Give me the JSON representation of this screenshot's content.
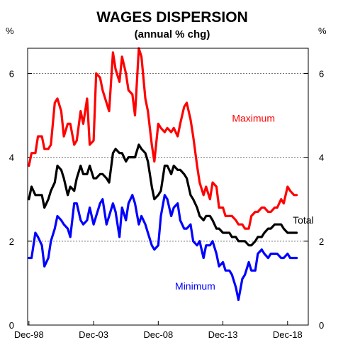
{
  "chart_data": {
    "type": "line",
    "title": "WAGES DISPERSION",
    "subtitle": "(annual % chg)",
    "ylabel_left": "%",
    "ylabel_right": "%",
    "ylim": [
      0,
      6.6
    ],
    "yticks": [
      0,
      2,
      4,
      6
    ],
    "xlim": [
      1998.8,
      2020.5
    ],
    "xticks": [
      {
        "value": 1998.9,
        "label": "Dec-98"
      },
      {
        "value": 2003.9,
        "label": "Dec-03"
      },
      {
        "value": 2008.9,
        "label": "Dec-08"
      },
      {
        "value": 2013.9,
        "label": "Dec-13"
      },
      {
        "value": 2018.9,
        "label": "Dec-18"
      }
    ],
    "grid": "horizontal",
    "series": [
      {
        "name": "Maximum",
        "color": "#ff0000",
        "x": [
          1998.9,
          1999.1,
          1999.4,
          1999.6,
          1999.9,
          2000.1,
          2000.4,
          2000.6,
          2000.9,
          2001.1,
          2001.4,
          2001.6,
          2001.9,
          2002.1,
          2002.4,
          2002.6,
          2002.9,
          2003.1,
          2003.4,
          2003.6,
          2003.9,
          2004.1,
          2004.4,
          2004.6,
          2004.9,
          2005.1,
          2005.4,
          2005.6,
          2005.9,
          2006.1,
          2006.4,
          2006.6,
          2006.9,
          2007.1,
          2007.4,
          2007.6,
          2007.9,
          2008.1,
          2008.4,
          2008.6,
          2008.9,
          2009.1,
          2009.4,
          2009.6,
          2009.9,
          2010.1,
          2010.4,
          2010.6,
          2010.9,
          2011.1,
          2011.4,
          2011.6,
          2011.9,
          2012.1,
          2012.4,
          2012.6,
          2012.9,
          2013.1,
          2013.4,
          2013.6,
          2013.9,
          2014.1,
          2014.4,
          2014.6,
          2014.9,
          2015.1,
          2015.4,
          2015.6,
          2015.9,
          2016.1,
          2016.4,
          2016.6,
          2016.9,
          2017.1,
          2017.4,
          2017.6,
          2017.9,
          2018.1,
          2018.4,
          2018.6,
          2018.9,
          2019.1,
          2019.4,
          2019.6
        ],
        "values": [
          3.8,
          4.1,
          4.1,
          4.5,
          4.5,
          4.2,
          4.2,
          4.3,
          5.3,
          5.4,
          5.1,
          4.5,
          4.8,
          4.8,
          4.3,
          4.4,
          5.1,
          4.8,
          5.4,
          4.3,
          4.4,
          6.0,
          5.9,
          5.6,
          5.3,
          5.1,
          6.5,
          6.1,
          5.8,
          6.4,
          6.0,
          5.6,
          5.5,
          5.0,
          6.6,
          6.4,
          5.4,
          5.1,
          4.3,
          3.9,
          4.8,
          4.7,
          4.6,
          4.7,
          4.6,
          4.7,
          4.5,
          4.8,
          5.2,
          5.3,
          4.9,
          4.5,
          3.8,
          3.4,
          3.1,
          3.3,
          3.0,
          3.4,
          3.3,
          2.8,
          2.8,
          2.6,
          2.6,
          2.6,
          2.5,
          2.4,
          2.4,
          2.3,
          2.3,
          2.6,
          2.7,
          2.7,
          2.8,
          2.8,
          2.7,
          2.7,
          2.8,
          2.8,
          3.0,
          2.9,
          3.3,
          3.2,
          3.1,
          3.1
        ]
      },
      {
        "name": "Total",
        "color": "#000000",
        "x": [
          1998.9,
          1999.1,
          1999.4,
          1999.6,
          1999.9,
          2000.1,
          2000.4,
          2000.6,
          2000.9,
          2001.1,
          2001.4,
          2001.6,
          2001.9,
          2002.1,
          2002.4,
          2002.6,
          2002.9,
          2003.1,
          2003.4,
          2003.6,
          2003.9,
          2004.1,
          2004.4,
          2004.6,
          2004.9,
          2005.1,
          2005.4,
          2005.6,
          2005.9,
          2006.1,
          2006.4,
          2006.6,
          2006.9,
          2007.1,
          2007.4,
          2007.6,
          2007.9,
          2008.1,
          2008.4,
          2008.6,
          2008.9,
          2009.1,
          2009.4,
          2009.6,
          2009.9,
          2010.1,
          2010.4,
          2010.6,
          2010.9,
          2011.1,
          2011.4,
          2011.6,
          2011.9,
          2012.1,
          2012.4,
          2012.6,
          2012.9,
          2013.1,
          2013.4,
          2013.6,
          2013.9,
          2014.1,
          2014.4,
          2014.6,
          2014.9,
          2015.1,
          2015.4,
          2015.6,
          2015.9,
          2016.1,
          2016.4,
          2016.6,
          2016.9,
          2017.1,
          2017.4,
          2017.6,
          2017.9,
          2018.1,
          2018.4,
          2018.6,
          2018.9,
          2019.1,
          2019.4,
          2019.6
        ],
        "values": [
          3.0,
          3.3,
          3.1,
          3.1,
          3.1,
          2.8,
          3.0,
          3.2,
          3.4,
          3.8,
          3.7,
          3.5,
          3.1,
          3.3,
          3.2,
          3.5,
          3.8,
          3.6,
          3.6,
          3.8,
          3.5,
          3.5,
          3.6,
          3.6,
          3.5,
          3.4,
          4.1,
          4.2,
          4.1,
          4.1,
          3.9,
          4.0,
          4.0,
          4.0,
          4.3,
          4.2,
          4.1,
          3.9,
          3.3,
          3.0,
          3.1,
          3.2,
          3.8,
          3.8,
          3.6,
          3.8,
          3.7,
          3.7,
          3.6,
          3.5,
          3.1,
          3.0,
          2.8,
          2.6,
          2.5,
          2.6,
          2.6,
          2.5,
          2.3,
          2.3,
          2.2,
          2.2,
          2.2,
          2.1,
          2.1,
          2.0,
          2.0,
          2.0,
          1.9,
          1.9,
          2.0,
          2.1,
          2.1,
          2.2,
          2.3,
          2.3,
          2.4,
          2.4,
          2.4,
          2.3,
          2.2,
          2.2,
          2.2,
          2.2
        ]
      },
      {
        "name": "Minimum",
        "color": "#0000ff",
        "x": [
          1998.9,
          1999.1,
          1999.4,
          1999.6,
          1999.9,
          2000.1,
          2000.4,
          2000.6,
          2000.9,
          2001.1,
          2001.4,
          2001.6,
          2001.9,
          2002.1,
          2002.4,
          2002.6,
          2002.9,
          2003.1,
          2003.4,
          2003.6,
          2003.9,
          2004.1,
          2004.4,
          2004.6,
          2004.9,
          2005.1,
          2005.4,
          2005.6,
          2005.9,
          2006.1,
          2006.4,
          2006.6,
          2006.9,
          2007.1,
          2007.4,
          2007.6,
          2007.9,
          2008.1,
          2008.4,
          2008.6,
          2008.9,
          2009.1,
          2009.4,
          2009.6,
          2009.9,
          2010.1,
          2010.4,
          2010.6,
          2010.9,
          2011.1,
          2011.4,
          2011.6,
          2011.9,
          2012.1,
          2012.4,
          2012.6,
          2012.9,
          2013.1,
          2013.4,
          2013.6,
          2013.9,
          2014.1,
          2014.4,
          2014.6,
          2014.9,
          2015.1,
          2015.4,
          2015.6,
          2015.9,
          2016.1,
          2016.4,
          2016.6,
          2016.9,
          2017.1,
          2017.4,
          2017.6,
          2017.9,
          2018.1,
          2018.4,
          2018.6,
          2018.9,
          2019.1,
          2019.4,
          2019.6
        ],
        "values": [
          1.6,
          1.6,
          2.2,
          2.1,
          1.9,
          1.4,
          1.6,
          2.0,
          2.3,
          2.6,
          2.5,
          2.4,
          2.3,
          2.1,
          2.9,
          2.9,
          2.5,
          2.4,
          2.5,
          2.8,
          2.4,
          2.6,
          2.9,
          3.0,
          2.4,
          2.6,
          2.9,
          2.7,
          2.1,
          2.8,
          2.5,
          2.9,
          3.1,
          2.9,
          2.4,
          2.6,
          2.4,
          2.2,
          1.9,
          1.8,
          1.9,
          2.6,
          3.1,
          3.0,
          2.6,
          2.8,
          2.9,
          2.5,
          2.3,
          2.3,
          2.4,
          2.0,
          1.9,
          2.0,
          1.6,
          1.9,
          1.9,
          2.0,
          1.7,
          1.4,
          1.5,
          1.3,
          1.3,
          1.2,
          0.9,
          0.6,
          1.1,
          1.2,
          1.5,
          1.3,
          1.3,
          1.7,
          1.8,
          1.7,
          1.6,
          1.7,
          1.7,
          1.7,
          1.6,
          1.6,
          1.7,
          1.6,
          1.6,
          1.6
        ]
      }
    ],
    "annotations": [
      {
        "series": "Maximum",
        "text": "Maximum",
        "x": 2014.6,
        "y": 4.85
      },
      {
        "series": "Total",
        "text": "Total",
        "x": 2019.3,
        "y": 2.42
      },
      {
        "series": "Minimum",
        "text": "Minimum",
        "x": 2010.2,
        "y": 0.85
      }
    ]
  }
}
